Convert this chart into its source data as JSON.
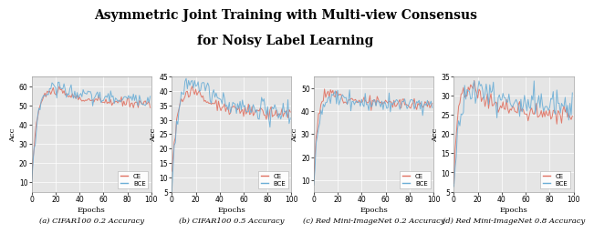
{
  "title_line1": "Asymmetric Joint Training with Multi-view Consensus",
  "title_line2": "for Noisy Label Learning",
  "subplots": [
    {
      "label": "(a) CIFAR100 0.2 Accuracy",
      "ylabel": "Acc",
      "xlabel": "Epochs",
      "ylim": [
        5,
        65
      ],
      "yticks": [
        10,
        20,
        30,
        40,
        50,
        60
      ],
      "xlim": [
        0,
        100
      ],
      "xticks": [
        0,
        20,
        40,
        60,
        80,
        100
      ],
      "ce_start": 10,
      "ce_peak": 58,
      "ce_peak_ep": 20,
      "ce_final": 51,
      "bce_start": 8,
      "bce_peak": 60,
      "bce_peak_ep": 22,
      "bce_final": 53,
      "ce_noise": 1.2,
      "bce_noise": 1.8,
      "ce_seed": 10,
      "bce_seed": 20
    },
    {
      "label": "(b) CIFAR100 0.5 Accuracy",
      "ylabel": "Acc",
      "xlabel": "Epochs",
      "ylim": [
        5,
        45
      ],
      "yticks": [
        5,
        10,
        15,
        20,
        25,
        30,
        35,
        40,
        45
      ],
      "xlim": [
        0,
        100
      ],
      "xticks": [
        0,
        20,
        40,
        60,
        80,
        100
      ],
      "ce_start": 10,
      "ce_peak": 40,
      "ce_peak_ep": 18,
      "ce_final": 32,
      "bce_start": 5,
      "bce_peak": 44,
      "bce_peak_ep": 22,
      "bce_final": 32,
      "ce_noise": 1.2,
      "bce_noise": 1.8,
      "ce_seed": 11,
      "bce_seed": 21
    },
    {
      "label": "(c) Red Mini-ImageNet 0.2 Accuracy",
      "ylabel": "Acc",
      "xlabel": "Epochs",
      "ylim": [
        5,
        55
      ],
      "yticks": [
        10,
        20,
        30,
        40,
        50
      ],
      "xlim": [
        0,
        100
      ],
      "xticks": [
        0,
        20,
        40,
        60,
        80,
        100
      ],
      "ce_start": 10,
      "ce_peak": 48,
      "ce_peak_ep": 15,
      "ce_final": 43,
      "bce_start": 8,
      "bce_peak": 46,
      "bce_peak_ep": 18,
      "bce_final": 43,
      "ce_noise": 1.2,
      "bce_noise": 1.8,
      "ce_seed": 12,
      "bce_seed": 22
    },
    {
      "label": "(d) Red Mini-ImageNet 0.8 Accuracy",
      "ylabel": "Acc",
      "xlabel": "Epochs",
      "ylim": [
        5,
        35
      ],
      "yticks": [
        5,
        10,
        15,
        20,
        25,
        30,
        35
      ],
      "xlim": [
        0,
        100
      ],
      "xticks": [
        0,
        20,
        40,
        60,
        80,
        100
      ],
      "ce_start": 8,
      "ce_peak": 32,
      "ce_peak_ep": 15,
      "ce_final": 25,
      "bce_start": 5,
      "bce_peak": 32,
      "bce_peak_ep": 20,
      "bce_final": 27,
      "ce_noise": 1.2,
      "bce_noise": 2.0,
      "ce_seed": 13,
      "bce_seed": 23
    }
  ],
  "ce_color": "#E07060",
  "bce_color": "#6BAED6",
  "bg_color": "#E5E5E5",
  "title_fontsize": 10,
  "label_fontsize": 6,
  "tick_fontsize": 5.5,
  "caption_fontsize": 6
}
